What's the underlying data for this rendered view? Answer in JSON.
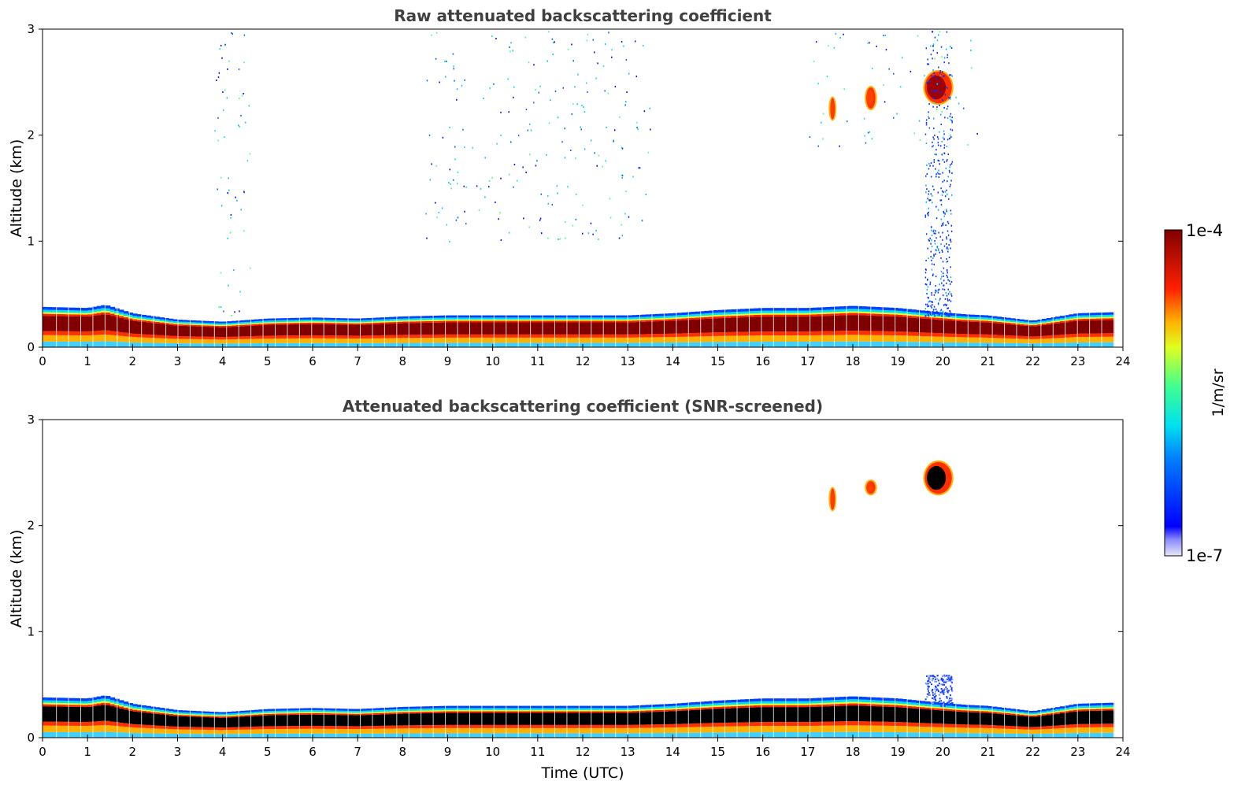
{
  "chart_data": [
    {
      "type": "heatmap",
      "title": "Raw attenuated backscattering coefficient",
      "xlabel": "",
      "ylabel": "Altitude (km)",
      "xlim": [
        0,
        24
      ],
      "ylim": [
        0,
        3
      ],
      "x_ticks": [
        "0",
        "1",
        "2",
        "3",
        "4",
        "5",
        "6",
        "7",
        "8",
        "9",
        "10",
        "11",
        "12",
        "13",
        "14",
        "15",
        "16",
        "17",
        "18",
        "19",
        "20",
        "21",
        "22",
        "23",
        "24"
      ],
      "y_ticks": [
        "0",
        "1",
        "2",
        "3"
      ],
      "layer_top_km": [
        [
          0,
          0.38
        ],
        [
          1,
          0.37
        ],
        [
          1.4,
          0.4
        ],
        [
          2,
          0.32
        ],
        [
          3,
          0.26
        ],
        [
          4,
          0.24
        ],
        [
          5,
          0.27
        ],
        [
          6,
          0.28
        ],
        [
          7,
          0.27
        ],
        [
          8,
          0.29
        ],
        [
          9,
          0.3
        ],
        [
          10,
          0.3
        ],
        [
          11,
          0.3
        ],
        [
          12,
          0.3
        ],
        [
          13,
          0.3
        ],
        [
          14,
          0.32
        ],
        [
          15,
          0.35
        ],
        [
          16,
          0.37
        ],
        [
          17,
          0.37
        ],
        [
          18,
          0.39
        ],
        [
          19,
          0.37
        ],
        [
          19.7,
          0.34
        ],
        [
          20.5,
          0.31
        ],
        [
          21,
          0.3
        ],
        [
          22,
          0.25
        ],
        [
          23,
          0.32
        ],
        [
          23.8,
          0.33
        ]
      ],
      "features": [
        {
          "name": "cloud",
          "time_utc": [
            19.6,
            20.2
          ],
          "altitude_km": [
            2.3,
            2.6
          ]
        },
        {
          "name": "precipitation-streak",
          "time_utc": [
            19.6,
            20.2
          ],
          "altitude_km": [
            0.3,
            3.0
          ]
        },
        {
          "name": "cloud-fragment",
          "time_utc": [
            17.5,
            17.6
          ],
          "altitude_km": [
            2.15,
            2.35
          ]
        },
        {
          "name": "cloud-fragment",
          "time_utc": [
            18.3,
            18.5
          ],
          "altitude_km": [
            2.25,
            2.45
          ]
        }
      ]
    },
    {
      "type": "heatmap",
      "title": "Attenuated backscattering coefficient (SNR-screened)",
      "xlabel": "Time (UTC)",
      "ylabel": "Altitude (km)",
      "xlim": [
        0,
        24
      ],
      "ylim": [
        0,
        3
      ],
      "x_ticks": [
        "0",
        "1",
        "2",
        "3",
        "4",
        "5",
        "6",
        "7",
        "8",
        "9",
        "10",
        "11",
        "12",
        "13",
        "14",
        "15",
        "16",
        "17",
        "18",
        "19",
        "20",
        "21",
        "22",
        "23",
        "24"
      ],
      "y_ticks": [
        "0",
        "1",
        "2",
        "3"
      ],
      "layer_top_km": [
        [
          0,
          0.38
        ],
        [
          1,
          0.37
        ],
        [
          1.4,
          0.4
        ],
        [
          2,
          0.32
        ],
        [
          3,
          0.26
        ],
        [
          4,
          0.24
        ],
        [
          5,
          0.27
        ],
        [
          6,
          0.28
        ],
        [
          7,
          0.27
        ],
        [
          8,
          0.29
        ],
        [
          9,
          0.3
        ],
        [
          10,
          0.3
        ],
        [
          11,
          0.3
        ],
        [
          12,
          0.3
        ],
        [
          13,
          0.3
        ],
        [
          14,
          0.32
        ],
        [
          15,
          0.35
        ],
        [
          16,
          0.37
        ],
        [
          17,
          0.37
        ],
        [
          18,
          0.39
        ],
        [
          19,
          0.37
        ],
        [
          19.7,
          0.34
        ],
        [
          20.5,
          0.31
        ],
        [
          21,
          0.3
        ],
        [
          22,
          0.25
        ],
        [
          23,
          0.32
        ],
        [
          23.8,
          0.33
        ]
      ],
      "features": [
        {
          "name": "cloud-saturated",
          "time_utc": [
            19.6,
            20.2
          ],
          "altitude_km": [
            2.3,
            2.6
          ]
        },
        {
          "name": "precipitation-remnant",
          "time_utc": [
            19.6,
            20.2
          ],
          "altitude_km": [
            0.3,
            0.6
          ]
        },
        {
          "name": "cloud-fragment",
          "time_utc": [
            17.5,
            17.6
          ],
          "altitude_km": [
            2.15,
            2.35
          ]
        },
        {
          "name": "cloud-fragment",
          "time_utc": [
            18.3,
            18.5
          ],
          "altitude_km": [
            2.3,
            2.42
          ]
        }
      ]
    }
  ],
  "colorbar": {
    "label": "1/m/sr",
    "max_label": "1e-4",
    "min_label": "1e-7",
    "scale": "log"
  },
  "colors": {
    "title": "#404040",
    "layer_core": "#800000",
    "layer_core_screened": "#000000"
  }
}
